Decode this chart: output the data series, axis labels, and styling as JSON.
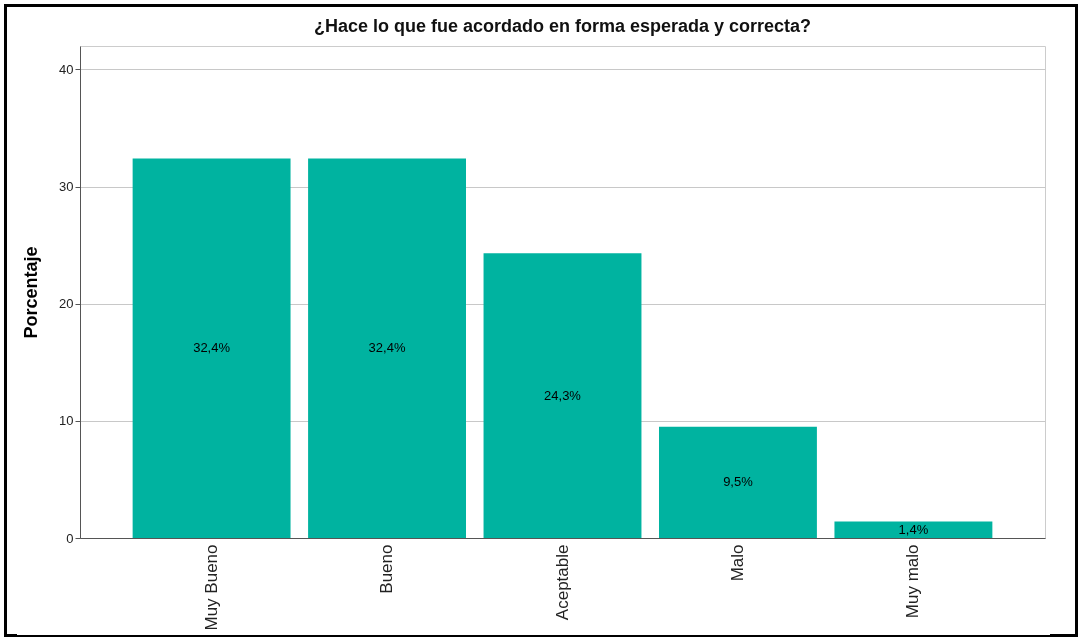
{
  "chart_data": {
    "type": "bar",
    "title": "¿Hace lo que fue acordado en forma esperada y correcta?",
    "ylabel": "Porcentaje",
    "categories": [
      "Muy Bueno",
      "Bueno",
      "Aceptable",
      "Malo",
      "Muy malo"
    ],
    "values": [
      32.4,
      32.4,
      24.3,
      9.5,
      1.4
    ],
    "value_labels": [
      "32,4%",
      "32,4%",
      "24,3%",
      "9,5%",
      "1,4%"
    ],
    "color": "#00b3a0",
    "ylim": [
      0,
      42
    ],
    "yticks": [
      0,
      10,
      20,
      30,
      40
    ],
    "grid": "y"
  }
}
